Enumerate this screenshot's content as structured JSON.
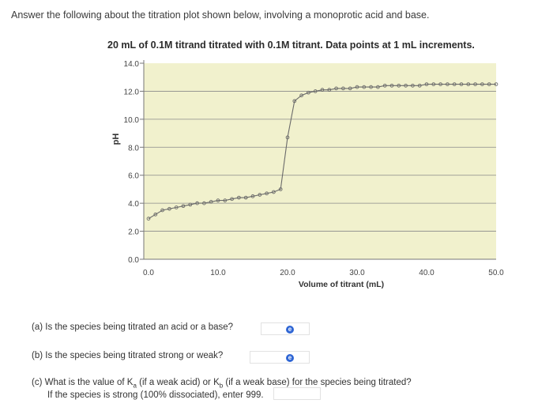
{
  "question": {
    "intro": "Answer the following about the titration plot shown below, involving a monoprotic acid and base."
  },
  "chart_data": {
    "type": "scatter",
    "title": "20 mL of 0.1M titrand titrated with 0.1M titrant. Data points at 1 mL increments.",
    "xlabel": "Volume of titrant (mL)",
    "ylabel": "pH",
    "xlim": [
      0,
      50
    ],
    "ylim": [
      0,
      14
    ],
    "x_ticks": [
      "0.0",
      "10.0",
      "20.0",
      "30.0",
      "40.0",
      "50.0"
    ],
    "y_ticks": [
      "0.0",
      "2.0",
      "4.0",
      "6.0",
      "8.0",
      "10.0",
      "12.0",
      "14.0"
    ],
    "grid": true,
    "x": [
      0,
      1,
      2,
      3,
      4,
      5,
      6,
      7,
      8,
      9,
      10,
      11,
      12,
      13,
      14,
      15,
      16,
      17,
      18,
      19,
      20,
      21,
      22,
      23,
      24,
      25,
      26,
      27,
      28,
      29,
      30,
      31,
      32,
      33,
      34,
      35,
      36,
      37,
      38,
      39,
      40,
      41,
      42,
      43,
      44,
      45,
      46,
      47,
      48,
      49,
      50
    ],
    "y": [
      2.9,
      3.2,
      3.5,
      3.6,
      3.7,
      3.8,
      3.9,
      4.0,
      4.0,
      4.1,
      4.2,
      4.2,
      4.3,
      4.4,
      4.4,
      4.5,
      4.6,
      4.7,
      4.8,
      5.0,
      8.7,
      11.3,
      11.7,
      11.9,
      12.0,
      12.1,
      12.1,
      12.2,
      12.2,
      12.2,
      12.3,
      12.3,
      12.3,
      12.3,
      12.4,
      12.4,
      12.4,
      12.4,
      12.4,
      12.4,
      12.5,
      12.5,
      12.5,
      12.5,
      12.5,
      12.5,
      12.5,
      12.5,
      12.5,
      12.5,
      12.5
    ]
  },
  "parts": {
    "a": "(a) Is the species being titrated an acid or a base?",
    "b": "(b) Is the species being titrated strong or weak?",
    "c_line1": "(c) What is the value of Ka (if a weak acid) or Kb (if a weak base) for the species being titrated?",
    "c_line2": "If the species is strong (100% dissociated), enter 999.",
    "status_icon": "e"
  },
  "colors": {
    "plot_bg": "#f1f1cd",
    "grid": "#8a8a8a",
    "curve": "#6a6a6a",
    "status": "#2f66d4"
  }
}
